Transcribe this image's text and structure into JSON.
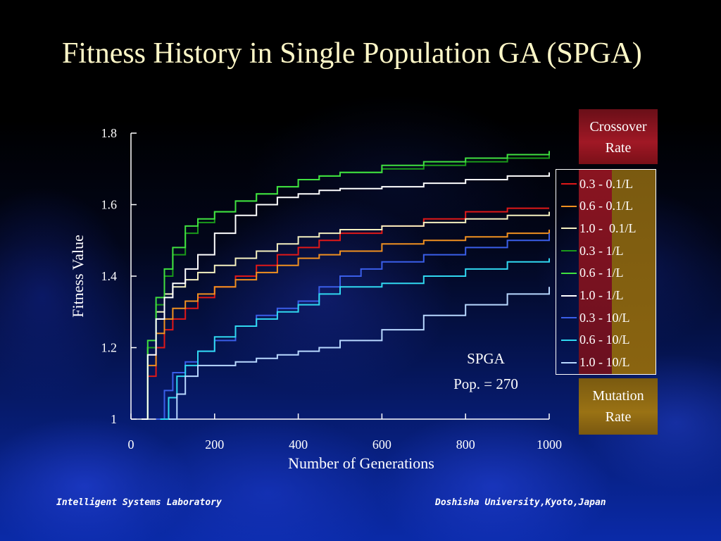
{
  "title": "Fitness History in Single Population GA (SPGA)",
  "footer": {
    "left": "Intelligent Systems Laboratory",
    "right": "Doshisha University,Kyoto,Japan"
  },
  "legend_headers": {
    "crossover": "Crossover Rate",
    "mutation": "Mutation Rate"
  },
  "annotation": {
    "line1": "SPGA",
    "line2": "Pop. = 270"
  },
  "chart_data": {
    "type": "line",
    "title": "",
    "xlabel": "Number of Generations",
    "ylabel": "Fitness Value",
    "xlim": [
      0,
      1000
    ],
    "ylim": [
      1,
      1.8
    ],
    "xticks": [
      0,
      200,
      400,
      600,
      800,
      1000
    ],
    "xtick_labels": [
      "0",
      "200",
      "400",
      "600",
      "800",
      "1000"
    ],
    "yticks": [
      1,
      1.2,
      1.4,
      1.6,
      1.8
    ],
    "ytick_labels": [
      "1",
      "1.2",
      "1.4",
      "1.6",
      "1.8"
    ],
    "grid": false,
    "legend_position": "right",
    "series": [
      {
        "name": "0.3 - 0.1/L",
        "color": "#e01818",
        "x": [
          25,
          40,
          60,
          80,
          100,
          130,
          160,
          200,
          250,
          300,
          350,
          400,
          450,
          500,
          600,
          700,
          800,
          900,
          1000
        ],
        "y": [
          1.0,
          1.12,
          1.2,
          1.25,
          1.28,
          1.31,
          1.34,
          1.37,
          1.4,
          1.43,
          1.46,
          1.48,
          1.5,
          1.52,
          1.54,
          1.56,
          1.58,
          1.59,
          1.59
        ]
      },
      {
        "name": "0.6 - 0.1/L",
        "color": "#f09020",
        "x": [
          25,
          40,
          60,
          80,
          100,
          130,
          160,
          200,
          250,
          300,
          350,
          400,
          450,
          500,
          600,
          700,
          800,
          900,
          1000
        ],
        "y": [
          1.0,
          1.15,
          1.24,
          1.28,
          1.31,
          1.33,
          1.35,
          1.37,
          1.39,
          1.41,
          1.43,
          1.45,
          1.46,
          1.47,
          1.49,
          1.5,
          1.51,
          1.52,
          1.53
        ]
      },
      {
        "name": "1.0 -  0.1/L",
        "color": "#f4f0c0",
        "x": [
          25,
          40,
          60,
          80,
          100,
          130,
          160,
          200,
          250,
          300,
          350,
          400,
          450,
          500,
          600,
          700,
          800,
          900,
          1000
        ],
        "y": [
          1.0,
          1.2,
          1.3,
          1.35,
          1.37,
          1.39,
          1.41,
          1.43,
          1.45,
          1.47,
          1.49,
          1.51,
          1.52,
          1.53,
          1.54,
          1.55,
          1.56,
          1.57,
          1.58
        ]
      },
      {
        "name": "0.3 - 1/L",
        "color": "#1a9a1a",
        "x": [
          25,
          40,
          60,
          80,
          100,
          130,
          160,
          200,
          250,
          300,
          350,
          400,
          450,
          500,
          600,
          700,
          800,
          900,
          1000
        ],
        "y": [
          1.0,
          1.2,
          1.32,
          1.4,
          1.46,
          1.52,
          1.55,
          1.58,
          1.61,
          1.63,
          1.65,
          1.67,
          1.68,
          1.69,
          1.7,
          1.71,
          1.72,
          1.73,
          1.74
        ]
      },
      {
        "name": "0.6 - 1/L",
        "color": "#40e040",
        "x": [
          25,
          40,
          60,
          80,
          100,
          130,
          160,
          200,
          250,
          300,
          350,
          400,
          450,
          500,
          600,
          700,
          800,
          900,
          1000
        ],
        "y": [
          1.0,
          1.22,
          1.34,
          1.42,
          1.48,
          1.54,
          1.56,
          1.58,
          1.61,
          1.63,
          1.65,
          1.67,
          1.68,
          1.69,
          1.71,
          1.72,
          1.73,
          1.74,
          1.75
        ]
      },
      {
        "name": "1.0 - 1/L",
        "color": "#ffffff",
        "x": [
          25,
          40,
          60,
          80,
          100,
          130,
          160,
          200,
          250,
          300,
          350,
          400,
          450,
          500,
          600,
          700,
          800,
          900,
          1000
        ],
        "y": [
          1.0,
          1.18,
          1.28,
          1.34,
          1.38,
          1.42,
          1.46,
          1.52,
          1.57,
          1.6,
          1.62,
          1.63,
          1.64,
          1.645,
          1.65,
          1.66,
          1.67,
          1.68,
          1.69
        ]
      },
      {
        "name": "0.3 - 10/L",
        "color": "#3a5ee8",
        "x": [
          60,
          80,
          100,
          130,
          160,
          200,
          250,
          300,
          350,
          400,
          450,
          500,
          550,
          600,
          700,
          800,
          900,
          1000
        ],
        "y": [
          1.0,
          1.08,
          1.13,
          1.16,
          1.19,
          1.22,
          1.26,
          1.29,
          1.31,
          1.33,
          1.37,
          1.4,
          1.42,
          1.44,
          1.46,
          1.48,
          1.5,
          1.52
        ]
      },
      {
        "name": "0.6 - 10/L",
        "color": "#30d8f0",
        "x": [
          70,
          90,
          110,
          130,
          160,
          200,
          250,
          300,
          350,
          400,
          450,
          500,
          600,
          700,
          800,
          900,
          1000
        ],
        "y": [
          1.0,
          1.06,
          1.12,
          1.15,
          1.19,
          1.23,
          1.26,
          1.28,
          1.3,
          1.32,
          1.35,
          1.37,
          1.38,
          1.4,
          1.42,
          1.44,
          1.45
        ]
      },
      {
        "name": "1.0 - 10/L",
        "color": "#b8d8ff",
        "x": [
          90,
          110,
          130,
          160,
          200,
          250,
          300,
          350,
          400,
          450,
          500,
          600,
          700,
          800,
          900,
          1000
        ],
        "y": [
          1.0,
          1.07,
          1.12,
          1.15,
          1.15,
          1.16,
          1.17,
          1.18,
          1.19,
          1.2,
          1.22,
          1.25,
          1.29,
          1.32,
          1.35,
          1.37
        ]
      }
    ]
  }
}
